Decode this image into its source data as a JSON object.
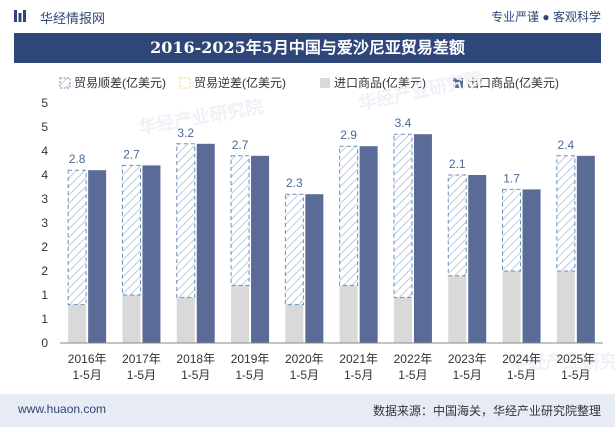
{
  "header": {
    "brand": "华经情报网",
    "tagline": "专业严谨 ● 客观科学",
    "title": "2016-2025年5月中国与爱沙尼亚贸易差额"
  },
  "footer": {
    "url": "www.huaon.com",
    "source": "数据来源：中国海关，华经产业研究院整理"
  },
  "watermark": "华经产业研究院",
  "colors": {
    "import": "#d9d9d9",
    "export": "#5a6b97",
    "surplus_stroke": "#6a8fb5",
    "deficit_stroke": "#f2d36b",
    "title_bar": "#2f4678"
  },
  "chart_data": {
    "type": "bar",
    "categories": [
      [
        "2016年",
        "1-5月"
      ],
      [
        "2017年",
        "1-5月"
      ],
      [
        "2018年",
        "1-5月"
      ],
      [
        "2019年",
        "1-5月"
      ],
      [
        "2020年",
        "1-5月"
      ],
      [
        "2021年",
        "1-5月"
      ],
      [
        "2022年",
        "1-5月"
      ],
      [
        "2023年",
        "1-5月"
      ],
      [
        "2024年",
        "1-5月"
      ],
      [
        "2025年",
        "1-5月"
      ]
    ],
    "series": [
      {
        "name": "贸易顺差(亿美元)",
        "values": [
          2.8,
          2.7,
          3.2,
          2.7,
          2.3,
          2.9,
          3.4,
          2.1,
          1.7,
          2.4
        ]
      },
      {
        "name": "贸易逆差(亿美元)",
        "values": [
          0,
          0,
          0,
          0,
          0,
          0,
          0,
          0,
          0,
          0
        ]
      },
      {
        "name": "进口商品(亿美元)",
        "values": [
          0.8,
          1.0,
          0.95,
          1.2,
          0.8,
          1.2,
          0.95,
          1.4,
          1.5,
          1.5
        ]
      },
      {
        "name": "出口商品(亿美元)",
        "values": [
          3.6,
          3.7,
          4.15,
          3.9,
          3.1,
          4.1,
          4.35,
          3.5,
          3.2,
          3.9
        ]
      }
    ],
    "y_ticks": [
      "0",
      "1",
      "1",
      "2",
      "2",
      "3",
      "3",
      "4",
      "4",
      "5",
      "5"
    ],
    "ylim": [
      0,
      5
    ],
    "legend_position": "top",
    "grid": false
  }
}
